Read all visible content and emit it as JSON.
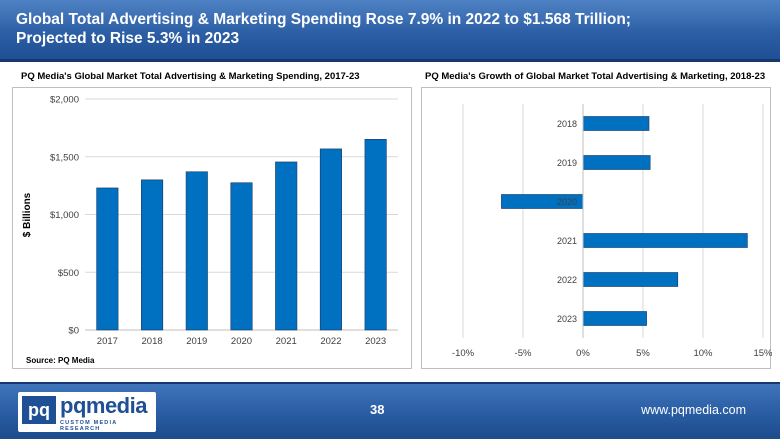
{
  "header": {
    "title_line1": "Global Total Advertising & Marketing Spending Rose 7.9% in 2022 to $1.568 Trillion;",
    "title_line2": "Projected to Rise 5.3% in 2023"
  },
  "left_title": "PQ Media's Global Market Total Advertising & Marketing Spending, 2017-23",
  "right_title": "PQ Media's Growth of Global Market Total Advertising & Marketing, 2018-23",
  "source": "Source: PQ Media",
  "footer": {
    "logo_mark": "pq",
    "logo_word": "pqmedia",
    "logo_tagline": "CUSTOM MEDIA RESEARCH",
    "page_number": "38",
    "website": "www.pqmedia.com"
  },
  "colors": {
    "bar": "#0070c0",
    "bar_border": "#1f3864",
    "grid": "#d9d9d9",
    "header": "#2d5fa6"
  },
  "chart_data": [
    {
      "type": "bar",
      "title": "PQ Media's Global Market Total Advertising & Marketing Spending, 2017-23",
      "categories": [
        "2017",
        "2018",
        "2019",
        "2020",
        "2021",
        "2022",
        "2023"
      ],
      "values": [
        1230,
        1300,
        1370,
        1275,
        1455,
        1568,
        1651
      ],
      "xlabel": "",
      "ylabel": "$ Billions",
      "ylim": [
        0,
        2000
      ],
      "yticks": [
        0,
        500,
        1000,
        1500,
        2000
      ],
      "ytick_labels": [
        "$0",
        "$500",
        "$1,000",
        "$1,500",
        "$2,000"
      ],
      "grid": true
    },
    {
      "type": "bar",
      "orientation": "horizontal",
      "title": "PQ Media's Growth of Global Market Total Advertising & Marketing, 2018-23",
      "categories": [
        "2018",
        "2019",
        "2020",
        "2021",
        "2022",
        "2023"
      ],
      "values": [
        5.5,
        5.6,
        -6.8,
        13.7,
        7.9,
        5.3
      ],
      "unit": "%",
      "xlim": [
        -10,
        15
      ],
      "xticks": [
        -10,
        -5,
        0,
        5,
        10,
        15
      ],
      "xtick_labels": [
        "-10%",
        "-5%",
        "0%",
        "5%",
        "10%",
        "15%"
      ],
      "grid": true
    }
  ]
}
